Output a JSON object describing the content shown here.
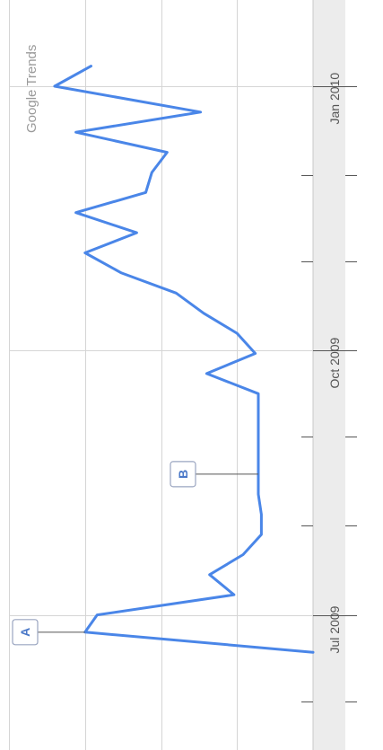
{
  "brand": "Google Trends",
  "colors": {
    "line": "#4a86e8",
    "grid": "#d5d5d5",
    "axis_band": "#ececec",
    "marker_border": "#9aa5c0"
  },
  "chart_data": {
    "type": "line",
    "orientation": "rotated-90-clockwise",
    "xlabel": "",
    "ylabel": "",
    "x_ticks": [
      {
        "date": "2009-07-01",
        "label": "Jul 2009"
      },
      {
        "date": "2009-10-01",
        "label": "Oct 2009"
      },
      {
        "date": "2010-01-01",
        "label": "Jan 2010"
      }
    ],
    "minor_ticks": [
      "2009-06-01",
      "2009-08-01",
      "2009-09-01",
      "2009-11-01",
      "2009-12-01"
    ],
    "xlim": [
      "2009-05-15",
      "2010-01-31"
    ],
    "ylim": [
      0,
      1
    ],
    "gridlines_y": [
      0.25,
      0.5,
      0.75
    ],
    "grid": true,
    "series": [
      {
        "points": [
          {
            "x": "2009-06-18",
            "y": 0.0
          },
          {
            "x": "2009-06-25",
            "y": 0.75
          },
          {
            "x": "2009-07-01",
            "y": 0.71
          },
          {
            "x": "2009-07-08",
            "y": 0.26
          },
          {
            "x": "2009-07-15",
            "y": 0.34
          },
          {
            "x": "2009-07-22",
            "y": 0.23
          },
          {
            "x": "2009-07-29",
            "y": 0.17
          },
          {
            "x": "2009-08-05",
            "y": 0.17
          },
          {
            "x": "2009-08-12",
            "y": 0.18
          },
          {
            "x": "2009-08-19",
            "y": 0.18
          },
          {
            "x": "2009-08-26",
            "y": 0.18
          },
          {
            "x": "2009-09-02",
            "y": 0.18
          },
          {
            "x": "2009-09-09",
            "y": 0.18
          },
          {
            "x": "2009-09-16",
            "y": 0.18
          },
          {
            "x": "2009-09-23",
            "y": 0.35
          },
          {
            "x": "2009-09-30",
            "y": 0.19
          },
          {
            "x": "2009-10-07",
            "y": 0.25
          },
          {
            "x": "2009-10-14",
            "y": 0.36
          },
          {
            "x": "2009-10-21",
            "y": 0.45
          },
          {
            "x": "2009-10-28",
            "y": 0.63
          },
          {
            "x": "2009-11-04",
            "y": 0.75
          },
          {
            "x": "2009-11-11",
            "y": 0.58
          },
          {
            "x": "2009-11-18",
            "y": 0.78
          },
          {
            "x": "2009-11-25",
            "y": 0.55
          },
          {
            "x": "2009-12-02",
            "y": 0.53
          },
          {
            "x": "2009-12-09",
            "y": 0.48
          },
          {
            "x": "2009-12-16",
            "y": 0.78
          },
          {
            "x": "2009-12-23",
            "y": 0.37
          },
          {
            "x": "2010-01-01",
            "y": 0.85
          },
          {
            "x": "2010-01-08",
            "y": 0.73
          }
        ]
      }
    ],
    "annotations": [
      {
        "label": "A",
        "x": "2009-06-25",
        "y": 0.75
      },
      {
        "label": "B",
        "x": "2009-08-19",
        "y": 0.18
      }
    ]
  }
}
